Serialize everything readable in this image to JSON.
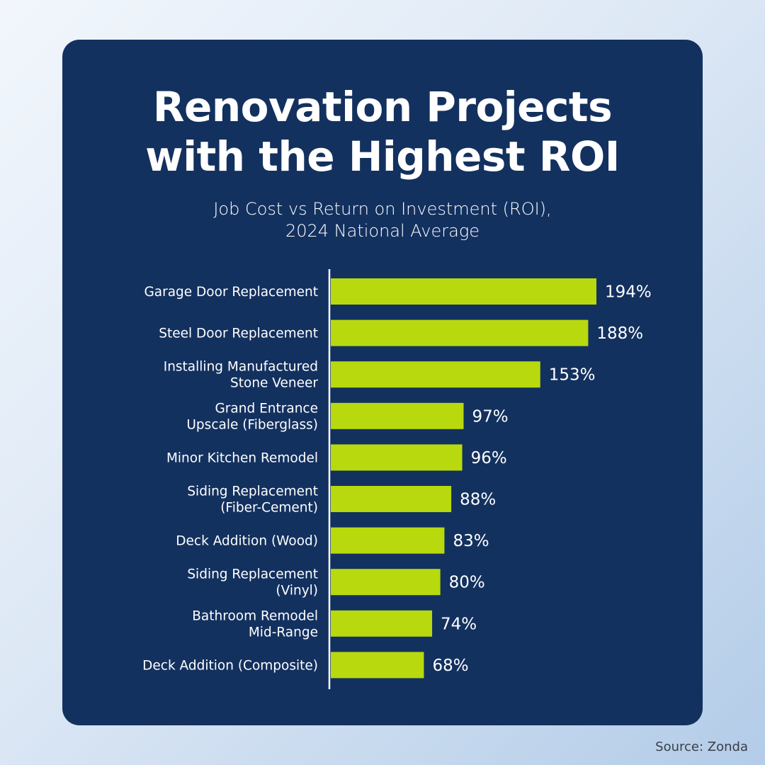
{
  "chart_data": {
    "type": "bar",
    "orientation": "horizontal",
    "title": "Renovation Projects with the Highest ROI",
    "title_lines": [
      "Renovation Projects",
      "with the Highest ROI"
    ],
    "subtitle": "Job Cost vs Return on Investment (ROI), 2024 National Average",
    "subtitle_lines": [
      "Job Cost vs Return on Investment (ROI),",
      "2024 National Average"
    ],
    "xlabel": "",
    "ylabel": "",
    "value_suffix": "%",
    "xlim": [
      0,
      200
    ],
    "grid": false,
    "legend": "none",
    "categories": [
      [
        "Garage Door Replacement"
      ],
      [
        "Steel Door Replacement"
      ],
      [
        "Installing Manufactured",
        "Stone Veneer"
      ],
      [
        "Grand Entrance",
        "Upscale (Fiberglass)"
      ],
      [
        "Minor Kitchen Remodel"
      ],
      [
        "Siding Replacement",
        "(Fiber-Cement)"
      ],
      [
        "Deck Addition (Wood)"
      ],
      [
        "Siding Replacement",
        "(Vinyl)"
      ],
      [
        "Bathroom Remodel",
        "Mid-Range"
      ],
      [
        "Deck Addition (Composite)"
      ]
    ],
    "values": [
      194,
      188,
      153,
      97,
      96,
      88,
      83,
      80,
      74,
      68
    ],
    "value_labels": [
      "194%",
      "188%",
      "153%",
      "97%",
      "96%",
      "88%",
      "83%",
      "80%",
      "74%",
      "68%"
    ],
    "bar_color": "#b8d90d",
    "source": "Source: Zonda"
  },
  "colors": {
    "card": "#13315f",
    "bar": "#b8d90d",
    "text": "#ffffff",
    "source_text": "#3a3f47"
  }
}
